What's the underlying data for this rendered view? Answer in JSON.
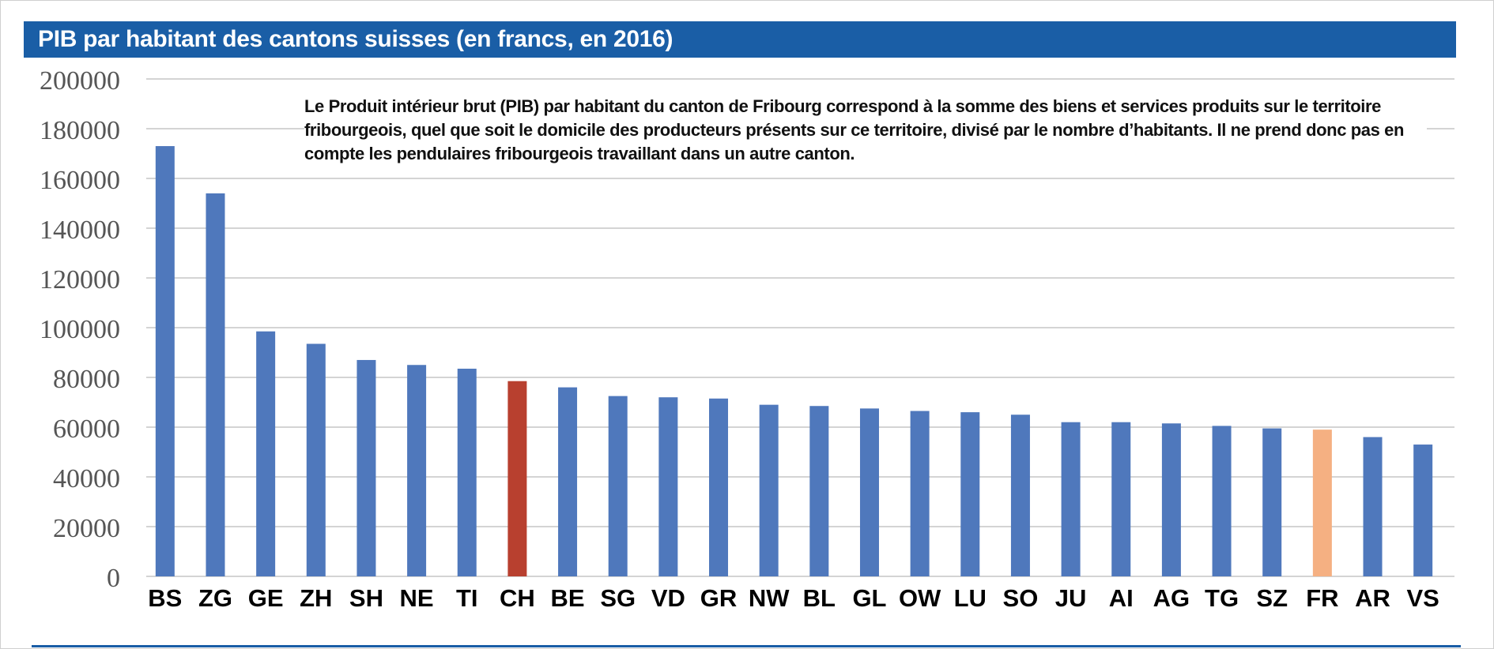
{
  "title": "PIB par habitant des cantons suisses (en francs, en 2016)",
  "annotation": "Le Produit intérieur brut (PIB) par habitant du canton de Fribourg correspond à la somme des biens et services produits sur le territoire fribourgeois, quel que soit le domicile des producteurs présents sur ce territoire, divisé par le nombre d’habitants. Il ne prend donc pas en compte les pendulaires fribourgeois travaillant dans un autre canton.",
  "colors": {
    "default_bar": "#4f78bc",
    "highlight_ch": "#b8402f",
    "highlight_fr": "#f5b082",
    "title_bg": "#1a5ea6"
  },
  "chart_data": {
    "type": "bar",
    "title": "PIB par habitant des cantons suisses (en francs, en 2016)",
    "xlabel": "",
    "ylabel": "",
    "ylim": [
      0,
      200000
    ],
    "yticks": [
      "0",
      "20000",
      "40000",
      "60000",
      "80000",
      "100000",
      "120000",
      "140000",
      "160000",
      "180000",
      "200000"
    ],
    "grid": true,
    "categories": [
      "BS",
      "ZG",
      "GE",
      "ZH",
      "SH",
      "NE",
      "TI",
      "CH",
      "BE",
      "SG",
      "VD",
      "GR",
      "NW",
      "BL",
      "GL",
      "OW",
      "LU",
      "SO",
      "JU",
      "AI",
      "AG",
      "TG",
      "SZ",
      "FR",
      "AR",
      "VS"
    ],
    "values": [
      173000,
      154000,
      98500,
      93500,
      87000,
      85000,
      83500,
      78500,
      76000,
      72500,
      72000,
      71500,
      69000,
      68500,
      67500,
      66500,
      66000,
      65000,
      62000,
      62000,
      61500,
      60500,
      59500,
      59000,
      56000,
      53000
    ],
    "highlights": {
      "CH": "highlight_ch",
      "FR": "highlight_fr"
    }
  }
}
